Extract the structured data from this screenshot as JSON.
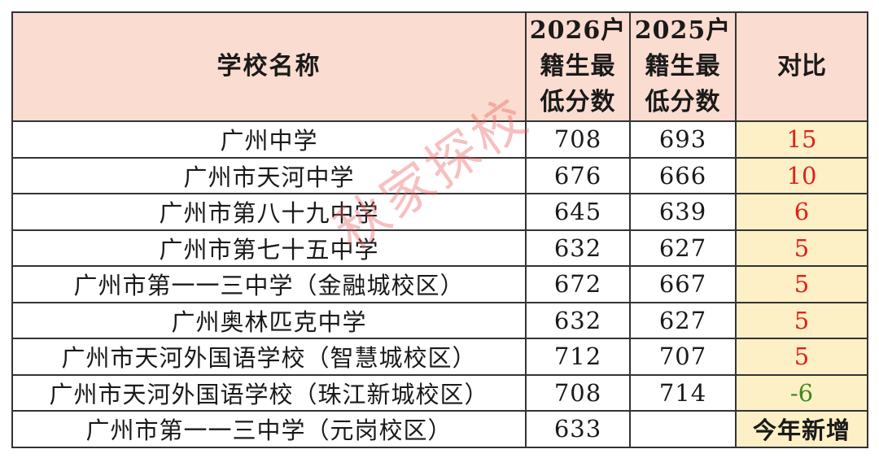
{
  "table": {
    "headers": {
      "name": "学校名称",
      "y2026_lines": [
        "2026户",
        "籍生最",
        "低分数"
      ],
      "y2025_lines": [
        "2025户",
        "籍生最",
        "低分数"
      ],
      "compare": "对比"
    },
    "rows": [
      {
        "name": "广州中学",
        "y2026": "708",
        "y2025": "693",
        "diff": "15",
        "type": "pos"
      },
      {
        "name": "广州市天河中学",
        "y2026": "676",
        "y2025": "666",
        "diff": "10",
        "type": "pos"
      },
      {
        "name": "广州市第八十九中学",
        "y2026": "645",
        "y2025": "639",
        "diff": "6",
        "type": "pos"
      },
      {
        "name": "广州市第七十五中学",
        "y2026": "632",
        "y2025": "627",
        "diff": "5",
        "type": "pos"
      },
      {
        "name": "广州市第一一三中学（金融城校区）",
        "y2026": "672",
        "y2025": "667",
        "diff": "5",
        "type": "pos"
      },
      {
        "name": "广州奥林匹克中学",
        "y2026": "632",
        "y2025": "627",
        "diff": "5",
        "type": "pos"
      },
      {
        "name": "广州市天河外国语学校（智慧城校区）",
        "y2026": "712",
        "y2025": "707",
        "diff": "5",
        "type": "pos"
      },
      {
        "name": "广州市天河外国语学校（珠江新城校区）",
        "y2026": "708",
        "y2025": "714",
        "diff": "-6",
        "type": "neg"
      },
      {
        "name": "广州市第一一三中学（元岗校区）",
        "y2026": "633",
        "y2025": "",
        "diff": "今年新增",
        "type": "new"
      }
    ]
  },
  "watermark": "秋家探校",
  "colors": {
    "header_bg": "#fbdcd0",
    "compare_bg": "#fdefc6",
    "positive": "#e0201b",
    "negative": "#3e8a1e"
  }
}
